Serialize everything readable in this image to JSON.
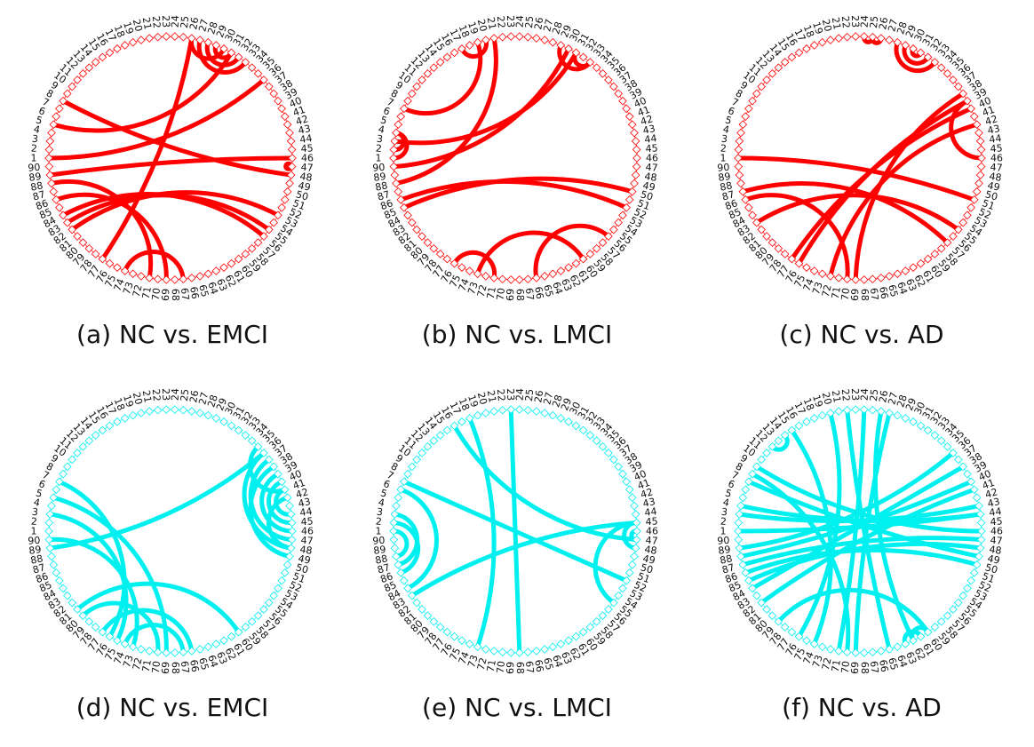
{
  "colors": {
    "top_row": "#ff0000",
    "bottom_row": "#00f0f0",
    "text": "#111111"
  },
  "node_labels": [
    "1",
    "2",
    "3",
    "4",
    "5",
    "6",
    "7",
    "8",
    "9",
    "10",
    "11",
    "12",
    "13",
    "14",
    "15",
    "16",
    "17",
    "18",
    "19",
    "20",
    "21",
    "22",
    "23",
    "24",
    "25",
    "26",
    "27",
    "28",
    "29",
    "30",
    "31",
    "32",
    "33",
    "34",
    "35",
    "36",
    "37",
    "38",
    "39",
    "40",
    "41",
    "42",
    "43",
    "44",
    "45",
    "46",
    "47",
    "48",
    "49",
    "50",
    "51",
    "52",
    "53",
    "54",
    "55",
    "56",
    "57",
    "58",
    "59",
    "60",
    "61",
    "62",
    "63",
    "64",
    "65",
    "66",
    "67",
    "68",
    "69",
    "70",
    "71",
    "72",
    "73",
    "74",
    "75",
    "76",
    "77",
    "78",
    "79",
    "80",
    "81",
    "82",
    "83",
    "84",
    "85",
    "86",
    "87",
    "88",
    "89",
    "90"
  ],
  "panels": [
    {
      "caption": "(a) NC vs. EMCI",
      "color": "#ff0000",
      "edges": [
        [
          89,
          46
        ],
        [
          1,
          36
        ],
        [
          5,
          31
        ],
        [
          8,
          48
        ],
        [
          84,
          56
        ],
        [
          82,
          53
        ],
        [
          86,
          69
        ],
        [
          88,
          71
        ],
        [
          77,
          26
        ],
        [
          74,
          67
        ],
        [
          83,
          55
        ],
        [
          47,
          47
        ],
        [
          27,
          33
        ],
        [
          28,
          32
        ],
        [
          29,
          31
        ],
        [
          26,
          30
        ]
      ]
    },
    {
      "caption": "(b) NC vs. LMCI",
      "color": "#ff0000",
      "edges": [
        [
          85,
          50
        ],
        [
          88,
          21
        ],
        [
          90,
          30
        ],
        [
          3,
          31
        ],
        [
          1,
          4
        ],
        [
          86,
          52
        ],
        [
          7,
          19
        ],
        [
          73,
          60
        ],
        [
          76,
          71
        ],
        [
          29,
          33
        ],
        [
          31,
          33
        ],
        [
          66,
          56
        ],
        [
          17,
          20
        ],
        [
          2,
          4
        ]
      ]
    },
    {
      "caption": "(c) NC vs. AD",
      "color": "#ff0000",
      "edges": [
        [
          1,
          51
        ],
        [
          87,
          57
        ],
        [
          83,
          55
        ],
        [
          86,
          70
        ],
        [
          69,
          38
        ],
        [
          77,
          40
        ],
        [
          72,
          42
        ],
        [
          39,
          46
        ],
        [
          28,
          33
        ],
        [
          29,
          32
        ],
        [
          30,
          31
        ],
        [
          25,
          26
        ],
        [
          24,
          25
        ],
        [
          76,
          39
        ]
      ]
    },
    {
      "caption": "(d) NC vs. EMCI",
      "color": "#00f0f0",
      "edges": [
        [
          89,
          36
        ],
        [
          3,
          75
        ],
        [
          5,
          69
        ],
        [
          90,
          73
        ],
        [
          7,
          76
        ],
        [
          80,
          70
        ],
        [
          81,
          60
        ],
        [
          77,
          66
        ],
        [
          74,
          67
        ],
        [
          36,
          48
        ],
        [
          37,
          47
        ],
        [
          39,
          46
        ],
        [
          40,
          45
        ],
        [
          41,
          44
        ],
        [
          42,
          48
        ],
        [
          38,
          49
        ],
        [
          35,
          41
        ]
      ]
    },
    {
      "caption": "(e) NC vs. LMCI",
      "color": "#00f0f0",
      "edges": [
        [
          83,
          45
        ],
        [
          7,
          52
        ],
        [
          16,
          47
        ],
        [
          18,
          73
        ],
        [
          23,
          68
        ],
        [
          84,
          6
        ],
        [
          86,
          2
        ],
        [
          88,
          1
        ],
        [
          87,
          3
        ],
        [
          55,
          45
        ],
        [
          48,
          45
        ],
        [
          47,
          46
        ]
      ]
    },
    {
      "caption": "(f) NC vs. AD",
      "color": "#00f0f0",
      "edges": [
        [
          87,
          47
        ],
        [
          82,
          41
        ],
        [
          85,
          48
        ],
        [
          88,
          40
        ],
        [
          89,
          36
        ],
        [
          7,
          49
        ],
        [
          84,
          38
        ],
        [
          4,
          44
        ],
        [
          8,
          70
        ],
        [
          15,
          74
        ],
        [
          20,
          76
        ],
        [
          22,
          65
        ],
        [
          24,
          71
        ],
        [
          27,
          69
        ],
        [
          9,
          46
        ],
        [
          86,
          50
        ],
        [
          3,
          43
        ],
        [
          79,
          60
        ],
        [
          63,
          61
        ],
        [
          62,
          60
        ],
        [
          12,
          14
        ],
        [
          1,
          44
        ],
        [
          26,
          62
        ]
      ]
    }
  ]
}
